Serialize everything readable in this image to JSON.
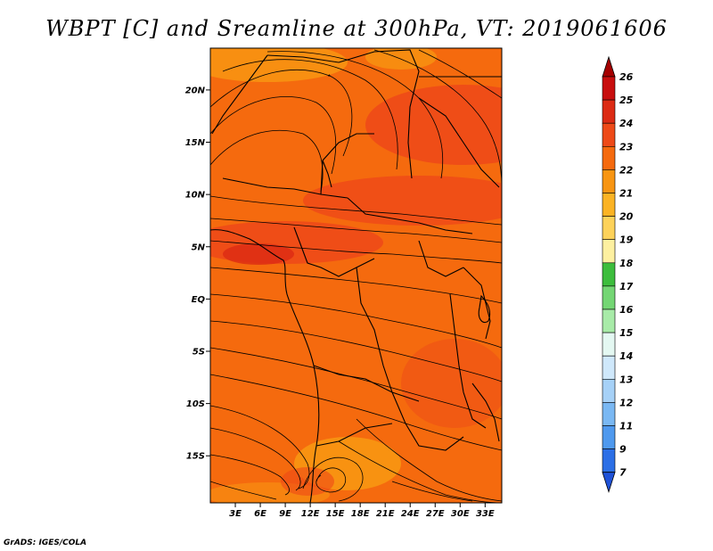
{
  "title": "WBPT [C] and Sreamline at 300hPa, VT: 2019061606",
  "footer": "GrADS: IGES/COLA",
  "map": {
    "field": "WBPT",
    "unit": "C",
    "level": "300hPa",
    "valid_time": "2019061606",
    "lat_range": [
      -19.5,
      24
    ],
    "lon_range": [
      0,
      35
    ],
    "lat_ticks": [
      "20N",
      "15N",
      "10N",
      "5N",
      "EQ",
      "5S",
      "10S",
      "15S"
    ],
    "lon_ticks": [
      "3E",
      "6E",
      "9E",
      "12E",
      "15E",
      "18E",
      "21E",
      "24E",
      "27E",
      "30E",
      "33E"
    ]
  },
  "colorbar": {
    "labels": [
      "26",
      "25",
      "24",
      "23",
      "22",
      "21",
      "20",
      "19",
      "18",
      "17",
      "16",
      "15",
      "14",
      "13",
      "12",
      "11",
      "9",
      "7"
    ],
    "colors": [
      "#a50000",
      "#c80e0e",
      "#dc2b14",
      "#ee4a18",
      "#f56a0e",
      "#f89512",
      "#fbb324",
      "#fdd25a",
      "#fdf0a0",
      "#3dbd3d",
      "#74d674",
      "#a8eba8",
      "#e4f8f2",
      "#cfe8fb",
      "#a6d1f7",
      "#7ab8f3",
      "#4f99ee",
      "#2c6fe6",
      "#1f52d8"
    ]
  }
}
